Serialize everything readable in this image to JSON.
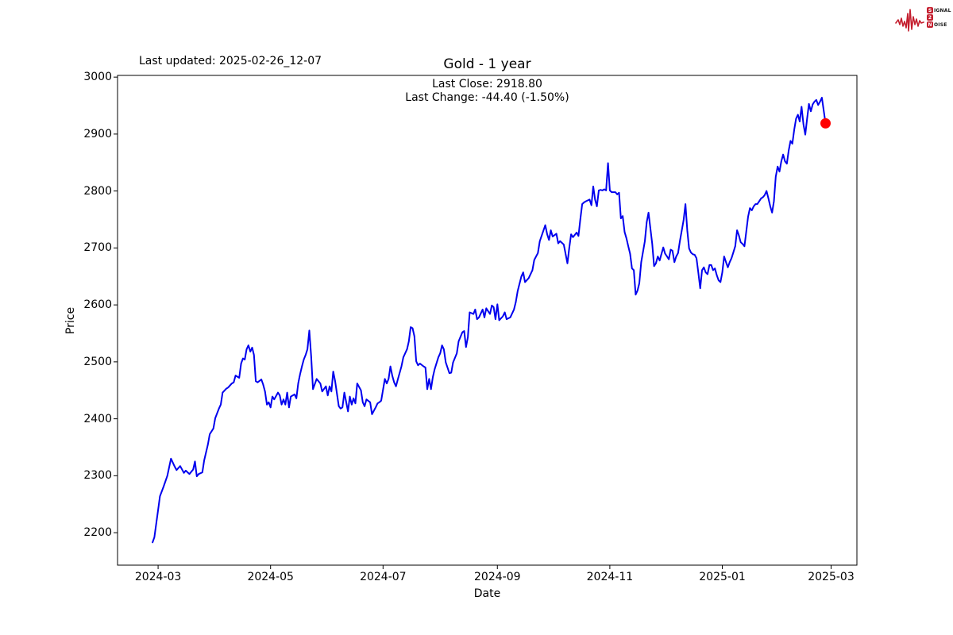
{
  "header": {
    "last_updated": "Last updated: 2025-02-26_12-07"
  },
  "logo": {
    "signal_initial": "S",
    "signal_rest": "IGNAL",
    "two": "2",
    "noise_initial": "N",
    "noise_rest": "OISE",
    "color": "#c41e2e"
  },
  "chart_data": {
    "type": "line",
    "title": "Gold - 1 year",
    "annotation_last_close": "Last Close: 2918.80",
    "annotation_last_change": "Last Change: -44.40 (-1.50%)",
    "last_close": 2918.8,
    "last_change": -44.4,
    "last_change_pct": -1.5,
    "xlabel": "Date",
    "ylabel": "Price",
    "series_name": "Gold",
    "line_color": "#0000ee",
    "marker_color": "#ff0000",
    "grid": false,
    "legend": "none",
    "x_ticks": [
      "2024-03",
      "2024-05",
      "2024-07",
      "2024-09",
      "2024-11",
      "2025-01",
      "2025-03"
    ],
    "y_ticks": [
      2200,
      2300,
      2400,
      2500,
      2600,
      2700,
      2800,
      2900,
      3000
    ],
    "xlim": [
      "2024-02-08",
      "2025-03-15"
    ],
    "ylim": [
      2143,
      3003
    ],
    "points": [
      [
        "2024-02-27",
        2183
      ],
      [
        "2024-02-28",
        2192
      ],
      [
        "2024-03-01",
        2240
      ],
      [
        "2024-03-02",
        2264
      ],
      [
        "2024-03-04",
        2281
      ],
      [
        "2024-03-06",
        2300
      ],
      [
        "2024-03-08",
        2330
      ],
      [
        "2024-03-10",
        2316
      ],
      [
        "2024-03-11",
        2310
      ],
      [
        "2024-03-13",
        2317
      ],
      [
        "2024-03-15",
        2305
      ],
      [
        "2024-03-16",
        2309
      ],
      [
        "2024-03-18",
        2303
      ],
      [
        "2024-03-20",
        2311
      ],
      [
        "2024-03-21",
        2325
      ],
      [
        "2024-03-22",
        2299
      ],
      [
        "2024-03-23",
        2303
      ],
      [
        "2024-03-25",
        2306
      ],
      [
        "2024-03-26",
        2327
      ],
      [
        "2024-03-28",
        2355
      ],
      [
        "2024-03-29",
        2373
      ],
      [
        "2024-03-31",
        2383
      ],
      [
        "2024-04-01",
        2401
      ],
      [
        "2024-04-03",
        2418
      ],
      [
        "2024-04-04",
        2425
      ],
      [
        "2024-04-05",
        2446
      ],
      [
        "2024-04-07",
        2453
      ],
      [
        "2024-04-08",
        2455
      ],
      [
        "2024-04-10",
        2462
      ],
      [
        "2024-04-11",
        2464
      ],
      [
        "2024-04-12",
        2476
      ],
      [
        "2024-04-14",
        2472
      ],
      [
        "2024-04-15",
        2497
      ],
      [
        "2024-04-16",
        2506
      ],
      [
        "2024-04-17",
        2504
      ],
      [
        "2024-04-18",
        2522
      ],
      [
        "2024-04-19",
        2529
      ],
      [
        "2024-04-20",
        2518
      ],
      [
        "2024-04-21",
        2525
      ],
      [
        "2024-04-22",
        2512
      ],
      [
        "2024-04-23",
        2466
      ],
      [
        "2024-04-24",
        2464
      ],
      [
        "2024-04-26",
        2469
      ],
      [
        "2024-04-27",
        2460
      ],
      [
        "2024-04-28",
        2448
      ],
      [
        "2024-04-29",
        2425
      ],
      [
        "2024-04-30",
        2429
      ],
      [
        "2024-05-01",
        2420
      ],
      [
        "2024-05-02",
        2439
      ],
      [
        "2024-05-03",
        2434
      ],
      [
        "2024-05-05",
        2446
      ],
      [
        "2024-05-06",
        2441
      ],
      [
        "2024-05-07",
        2425
      ],
      [
        "2024-05-08",
        2434
      ],
      [
        "2024-05-09",
        2425
      ],
      [
        "2024-05-10",
        2446
      ],
      [
        "2024-05-11",
        2420
      ],
      [
        "2024-05-12",
        2439
      ],
      [
        "2024-05-14",
        2443
      ],
      [
        "2024-05-15",
        2436
      ],
      [
        "2024-05-16",
        2462
      ],
      [
        "2024-05-17",
        2478
      ],
      [
        "2024-05-18",
        2492
      ],
      [
        "2024-05-19",
        2504
      ],
      [
        "2024-05-20",
        2512
      ],
      [
        "2024-05-21",
        2522
      ],
      [
        "2024-05-22",
        2555
      ],
      [
        "2024-05-23",
        2510
      ],
      [
        "2024-05-24",
        2452
      ],
      [
        "2024-05-26",
        2470
      ],
      [
        "2024-05-28",
        2462
      ],
      [
        "2024-05-29",
        2448
      ],
      [
        "2024-05-31",
        2457
      ],
      [
        "2024-06-01",
        2441
      ],
      [
        "2024-06-02",
        2457
      ],
      [
        "2024-06-03",
        2448
      ],
      [
        "2024-06-04",
        2483
      ],
      [
        "2024-06-05",
        2466
      ],
      [
        "2024-06-07",
        2422
      ],
      [
        "2024-06-08",
        2418
      ],
      [
        "2024-06-09",
        2420
      ],
      [
        "2024-06-10",
        2446
      ],
      [
        "2024-06-12",
        2413
      ],
      [
        "2024-06-13",
        2439
      ],
      [
        "2024-06-14",
        2425
      ],
      [
        "2024-06-15",
        2436
      ],
      [
        "2024-06-16",
        2427
      ],
      [
        "2024-06-17",
        2462
      ],
      [
        "2024-06-19",
        2450
      ],
      [
        "2024-06-20",
        2429
      ],
      [
        "2024-06-21",
        2422
      ],
      [
        "2024-06-22",
        2434
      ],
      [
        "2024-06-24",
        2429
      ],
      [
        "2024-06-25",
        2408
      ],
      [
        "2024-06-27",
        2420
      ],
      [
        "2024-06-28",
        2427
      ],
      [
        "2024-06-29",
        2429
      ],
      [
        "2024-06-30",
        2432
      ],
      [
        "2024-07-02",
        2470
      ],
      [
        "2024-07-03",
        2462
      ],
      [
        "2024-07-04",
        2470
      ],
      [
        "2024-07-05",
        2492
      ],
      [
        "2024-07-06",
        2476
      ],
      [
        "2024-07-07",
        2464
      ],
      [
        "2024-07-08",
        2457
      ],
      [
        "2024-07-09",
        2469
      ],
      [
        "2024-07-11",
        2492
      ],
      [
        "2024-07-12",
        2508
      ],
      [
        "2024-07-13",
        2515
      ],
      [
        "2024-07-14",
        2522
      ],
      [
        "2024-07-15",
        2536
      ],
      [
        "2024-07-16",
        2561
      ],
      [
        "2024-07-17",
        2559
      ],
      [
        "2024-07-18",
        2545
      ],
      [
        "2024-07-19",
        2501
      ],
      [
        "2024-07-20",
        2494
      ],
      [
        "2024-07-21",
        2497
      ],
      [
        "2024-07-23",
        2492
      ],
      [
        "2024-07-24",
        2490
      ],
      [
        "2024-07-25",
        2452
      ],
      [
        "2024-07-26",
        2470
      ],
      [
        "2024-07-27",
        2452
      ],
      [
        "2024-07-28",
        2473
      ],
      [
        "2024-07-29",
        2487
      ],
      [
        "2024-07-31",
        2508
      ],
      [
        "2024-08-01",
        2515
      ],
      [
        "2024-08-02",
        2529
      ],
      [
        "2024-08-03",
        2522
      ],
      [
        "2024-08-04",
        2499
      ],
      [
        "2024-08-06",
        2480
      ],
      [
        "2024-08-07",
        2481
      ],
      [
        "2024-08-08",
        2499
      ],
      [
        "2024-08-10",
        2515
      ],
      [
        "2024-08-11",
        2536
      ],
      [
        "2024-08-13",
        2552
      ],
      [
        "2024-08-14",
        2554
      ],
      [
        "2024-08-15",
        2526
      ],
      [
        "2024-08-16",
        2543
      ],
      [
        "2024-08-17",
        2587
      ],
      [
        "2024-08-19",
        2584
      ],
      [
        "2024-08-20",
        2592
      ],
      [
        "2024-08-21",
        2575
      ],
      [
        "2024-08-22",
        2578
      ],
      [
        "2024-08-24",
        2592
      ],
      [
        "2024-08-25",
        2578
      ],
      [
        "2024-08-26",
        2594
      ],
      [
        "2024-08-28",
        2584
      ],
      [
        "2024-08-29",
        2599
      ],
      [
        "2024-08-30",
        2596
      ],
      [
        "2024-08-31",
        2575
      ],
      [
        "2024-09-01",
        2601
      ],
      [
        "2024-09-02",
        2573
      ],
      [
        "2024-09-04",
        2580
      ],
      [
        "2024-09-05",
        2587
      ],
      [
        "2024-09-06",
        2575
      ],
      [
        "2024-09-08",
        2578
      ],
      [
        "2024-09-10",
        2592
      ],
      [
        "2024-09-11",
        2605
      ],
      [
        "2024-09-12",
        2624
      ],
      [
        "2024-09-14",
        2650
      ],
      [
        "2024-09-15",
        2657
      ],
      [
        "2024-09-16",
        2640
      ],
      [
        "2024-09-18",
        2647
      ],
      [
        "2024-09-20",
        2661
      ],
      [
        "2024-09-21",
        2679
      ],
      [
        "2024-09-23",
        2691
      ],
      [
        "2024-09-24",
        2712
      ],
      [
        "2024-09-27",
        2740
      ],
      [
        "2024-09-28",
        2724
      ],
      [
        "2024-09-29",
        2714
      ],
      [
        "2024-09-30",
        2731
      ],
      [
        "2024-10-01",
        2720
      ],
      [
        "2024-10-03",
        2725
      ],
      [
        "2024-10-04",
        2708
      ],
      [
        "2024-10-05",
        2712
      ],
      [
        "2024-10-07",
        2706
      ],
      [
        "2024-10-09",
        2673
      ],
      [
        "2024-10-10",
        2700
      ],
      [
        "2024-10-11",
        2724
      ],
      [
        "2024-10-12",
        2719
      ],
      [
        "2024-10-14",
        2727
      ],
      [
        "2024-10-15",
        2721
      ],
      [
        "2024-10-16",
        2750
      ],
      [
        "2024-10-17",
        2777
      ],
      [
        "2024-10-18",
        2780
      ],
      [
        "2024-10-19",
        2782
      ],
      [
        "2024-10-21",
        2785
      ],
      [
        "2024-10-22",
        2775
      ],
      [
        "2024-10-23",
        2808
      ],
      [
        "2024-10-24",
        2785
      ],
      [
        "2024-10-25",
        2773
      ],
      [
        "2024-10-26",
        2801
      ],
      [
        "2024-10-27",
        2802
      ],
      [
        "2024-10-28",
        2801
      ],
      [
        "2024-10-29",
        2803
      ],
      [
        "2024-10-30",
        2801
      ],
      [
        "2024-10-31",
        2849
      ],
      [
        "2024-11-01",
        2801
      ],
      [
        "2024-11-02",
        2798
      ],
      [
        "2024-11-04",
        2798
      ],
      [
        "2024-11-05",
        2794
      ],
      [
        "2024-11-06",
        2797
      ],
      [
        "2024-11-07",
        2752
      ],
      [
        "2024-11-08",
        2756
      ],
      [
        "2024-11-09",
        2728
      ],
      [
        "2024-11-10",
        2717
      ],
      [
        "2024-11-11",
        2703
      ],
      [
        "2024-11-12",
        2690
      ],
      [
        "2024-11-13",
        2664
      ],
      [
        "2024-11-14",
        2661
      ],
      [
        "2024-11-15",
        2618
      ],
      [
        "2024-11-16",
        2625
      ],
      [
        "2024-11-17",
        2638
      ],
      [
        "2024-11-18",
        2675
      ],
      [
        "2024-11-20",
        2712
      ],
      [
        "2024-11-21",
        2745
      ],
      [
        "2024-11-22",
        2762
      ],
      [
        "2024-11-24",
        2707
      ],
      [
        "2024-11-25",
        2668
      ],
      [
        "2024-11-26",
        2673
      ],
      [
        "2024-11-27",
        2685
      ],
      [
        "2024-11-28",
        2678
      ],
      [
        "2024-11-30",
        2701
      ],
      [
        "2024-12-01",
        2690
      ],
      [
        "2024-12-02",
        2685
      ],
      [
        "2024-12-03",
        2680
      ],
      [
        "2024-12-04",
        2697
      ],
      [
        "2024-12-05",
        2695
      ],
      [
        "2024-12-06",
        2675
      ],
      [
        "2024-12-07",
        2685
      ],
      [
        "2024-12-08",
        2691
      ],
      [
        "2024-12-09",
        2712
      ],
      [
        "2024-12-11",
        2749
      ],
      [
        "2024-12-12",
        2777
      ],
      [
        "2024-12-13",
        2731
      ],
      [
        "2024-12-14",
        2699
      ],
      [
        "2024-12-15",
        2692
      ],
      [
        "2024-12-16",
        2689
      ],
      [
        "2024-12-17",
        2688
      ],
      [
        "2024-12-18",
        2682
      ],
      [
        "2024-12-19",
        2657
      ],
      [
        "2024-12-20",
        2629
      ],
      [
        "2024-12-21",
        2661
      ],
      [
        "2024-12-22",
        2666
      ],
      [
        "2024-12-23",
        2657
      ],
      [
        "2024-12-24",
        2654
      ],
      [
        "2024-12-25",
        2670
      ],
      [
        "2024-12-26",
        2670
      ],
      [
        "2024-12-27",
        2661
      ],
      [
        "2024-12-28",
        2664
      ],
      [
        "2024-12-29",
        2652
      ],
      [
        "2024-12-30",
        2643
      ],
      [
        "2024-12-31",
        2640
      ],
      [
        "2025-01-01",
        2657
      ],
      [
        "2025-01-02",
        2685
      ],
      [
        "2025-01-03",
        2675
      ],
      [
        "2025-01-04",
        2666
      ],
      [
        "2025-01-05",
        2675
      ],
      [
        "2025-01-06",
        2682
      ],
      [
        "2025-01-07",
        2692
      ],
      [
        "2025-01-08",
        2703
      ],
      [
        "2025-01-09",
        2731
      ],
      [
        "2025-01-10",
        2722
      ],
      [
        "2025-01-11",
        2710
      ],
      [
        "2025-01-12",
        2707
      ],
      [
        "2025-01-13",
        2703
      ],
      [
        "2025-01-14",
        2729
      ],
      [
        "2025-01-15",
        2755
      ],
      [
        "2025-01-16",
        2770
      ],
      [
        "2025-01-17",
        2766
      ],
      [
        "2025-01-18",
        2773
      ],
      [
        "2025-01-19",
        2777
      ],
      [
        "2025-01-20",
        2777
      ],
      [
        "2025-01-21",
        2782
      ],
      [
        "2025-01-22",
        2787
      ],
      [
        "2025-01-23",
        2789
      ],
      [
        "2025-01-24",
        2793
      ],
      [
        "2025-01-25",
        2800
      ],
      [
        "2025-01-26",
        2787
      ],
      [
        "2025-01-27",
        2773
      ],
      [
        "2025-01-28",
        2762
      ],
      [
        "2025-01-29",
        2782
      ],
      [
        "2025-01-30",
        2825
      ],
      [
        "2025-01-31",
        2843
      ],
      [
        "2025-02-01",
        2834
      ],
      [
        "2025-02-02",
        2852
      ],
      [
        "2025-02-03",
        2864
      ],
      [
        "2025-02-04",
        2852
      ],
      [
        "2025-02-05",
        2848
      ],
      [
        "2025-02-06",
        2871
      ],
      [
        "2025-02-07",
        2888
      ],
      [
        "2025-02-08",
        2883
      ],
      [
        "2025-02-09",
        2908
      ],
      [
        "2025-02-10",
        2927
      ],
      [
        "2025-02-11",
        2934
      ],
      [
        "2025-02-12",
        2922
      ],
      [
        "2025-02-13",
        2948
      ],
      [
        "2025-02-14",
        2917
      ],
      [
        "2025-02-15",
        2899
      ],
      [
        "2025-02-16",
        2927
      ],
      [
        "2025-02-17",
        2953
      ],
      [
        "2025-02-18",
        2940
      ],
      [
        "2025-02-19",
        2952
      ],
      [
        "2025-02-20",
        2957
      ],
      [
        "2025-02-21",
        2960
      ],
      [
        "2025-02-22",
        2951
      ],
      [
        "2025-02-23",
        2957
      ],
      [
        "2025-02-24",
        2964
      ],
      [
        "2025-02-26",
        2918.8
      ]
    ]
  }
}
